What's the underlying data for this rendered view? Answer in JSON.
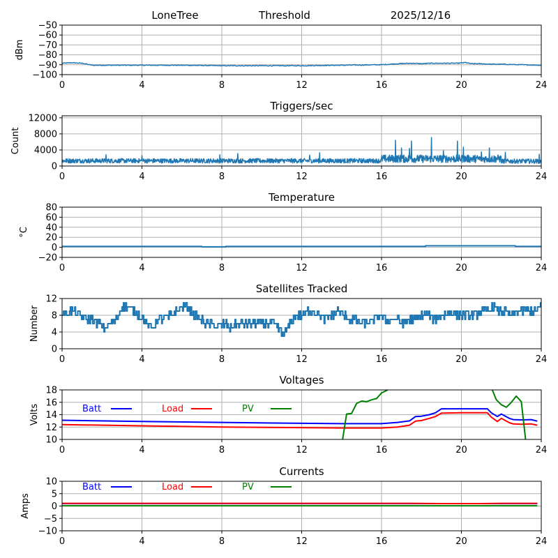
{
  "header": {
    "station": "LoneTree",
    "mode": "Threshold",
    "date": "2025/12/16"
  },
  "chart_data": [
    {
      "id": "signal",
      "type": "line",
      "title": "",
      "xlabel": "",
      "ylabel": "dBm",
      "xlim": [
        0,
        24
      ],
      "ylim": [
        -100,
        -50
      ],
      "xticks": [
        "0",
        "4",
        "8",
        "12",
        "16",
        "20",
        "24"
      ],
      "yticks": [
        "−100",
        "−90",
        "−80",
        "−70",
        "−60",
        "−50"
      ],
      "ytick_values": [
        -100,
        -90,
        -80,
        -70,
        -60,
        -50
      ],
      "grid": true,
      "series": [
        {
          "name": "signal",
          "color": "#1f77b4",
          "x": [
            0,
            0.5,
            1.0,
            1.5,
            2,
            4,
            6,
            8,
            10,
            12,
            14,
            16,
            16.8,
            17.5,
            18,
            18.5,
            19,
            19.8,
            20.2,
            20.5,
            21,
            21.5,
            22,
            23,
            24
          ],
          "y": [
            -88.5,
            -88,
            -88.5,
            -90.5,
            -90.5,
            -90.5,
            -90.5,
            -91,
            -91,
            -91,
            -90.5,
            -90,
            -89,
            -88.5,
            -89,
            -88.5,
            -88.5,
            -88.5,
            -87.8,
            -89,
            -89,
            -89.5,
            -89.5,
            -90,
            -90.5
          ]
        }
      ]
    },
    {
      "id": "triggers",
      "type": "line",
      "title": "Triggers/sec",
      "xlabel": "",
      "ylabel": "Count",
      "xlim": [
        0,
        24
      ],
      "ylim": [
        0,
        12500
      ],
      "xticks": [
        "0",
        "4",
        "8",
        "12",
        "16",
        "20",
        "24"
      ],
      "yticks": [
        "0",
        "4000",
        "8000",
        "12000"
      ],
      "ytick_values": [
        0,
        4000,
        8000,
        12000
      ],
      "grid": true,
      "series": [
        {
          "name": "triggers",
          "color": "#1f77b4",
          "baseline_ranges": [
            {
              "from": 0,
              "to": 16,
              "mean": 1300,
              "jitter": 700
            },
            {
              "from": 16,
              "to": 22,
              "mean": 1800,
              "jitter": 1200
            },
            {
              "from": 22,
              "to": 24,
              "mean": 1200,
              "jitter": 700
            }
          ],
          "spikes": [
            {
              "x": 2.2,
              "y": 2800
            },
            {
              "x": 4.0,
              "y": 2600
            },
            {
              "x": 7.9,
              "y": 2800
            },
            {
              "x": 8.8,
              "y": 3100
            },
            {
              "x": 12.4,
              "y": 2700
            },
            {
              "x": 12.9,
              "y": 3300
            },
            {
              "x": 16.7,
              "y": 6400
            },
            {
              "x": 17.0,
              "y": 4500
            },
            {
              "x": 17.4,
              "y": 4400
            },
            {
              "x": 17.5,
              "y": 6200
            },
            {
              "x": 18.5,
              "y": 7100
            },
            {
              "x": 19.1,
              "y": 3800
            },
            {
              "x": 19.8,
              "y": 6200
            },
            {
              "x": 20.1,
              "y": 4700
            },
            {
              "x": 21.0,
              "y": 3500
            },
            {
              "x": 21.4,
              "y": 4500
            },
            {
              "x": 22.2,
              "y": 3400
            },
            {
              "x": 23.9,
              "y": 2900
            }
          ]
        }
      ]
    },
    {
      "id": "temperature",
      "type": "line",
      "title": "Temperature",
      "xlabel": "",
      "ylabel": "°C",
      "xlim": [
        0,
        24
      ],
      "ylim": [
        -20,
        80
      ],
      "xticks": [
        "0",
        "4",
        "8",
        "12",
        "16",
        "20",
        "24"
      ],
      "yticks": [
        "−20",
        "0",
        "20",
        "40",
        "60",
        "80"
      ],
      "ytick_values": [
        -20,
        0,
        20,
        40,
        60,
        80
      ],
      "grid": true,
      "series": [
        {
          "name": "temperature",
          "color": "#1f77b4",
          "x": [
            0,
            7.0,
            7.0,
            8.2,
            8.2,
            18.2,
            18.2,
            22.7,
            22.7,
            24
          ],
          "y": [
            2,
            2,
            1,
            1,
            2,
            2,
            3,
            3,
            2,
            2
          ]
        }
      ]
    },
    {
      "id": "satellites",
      "type": "line",
      "title": "Satellites Tracked",
      "xlabel": "",
      "ylabel": "Number",
      "xlim": [
        0,
        24
      ],
      "ylim": [
        0,
        12
      ],
      "xticks": [
        "0",
        "4",
        "8",
        "12",
        "16",
        "20",
        "24"
      ],
      "yticks": [
        "0",
        "4",
        "8",
        "12"
      ],
      "ytick_values": [
        0,
        4,
        8,
        12
      ],
      "grid": true,
      "series": [
        {
          "name": "satellites",
          "color": "#1f77b4",
          "x": [
            0,
            0.3,
            0.6,
            0.9,
            1.2,
            1.5,
            1.8,
            2.1,
            2.4,
            2.7,
            3.0,
            3.3,
            3.6,
            3.9,
            4.2,
            4.5,
            4.8,
            5.1,
            5.4,
            5.7,
            6.0,
            6.3,
            6.6,
            6.9,
            7.2,
            7.5,
            7.8,
            8.1,
            8.4,
            8.7,
            9.0,
            9.3,
            9.6,
            9.9,
            10.2,
            10.5,
            10.8,
            11.1,
            11.4,
            11.7,
            12.0,
            12.3,
            12.6,
            12.9,
            13.2,
            13.5,
            13.8,
            14.1,
            14.4,
            14.7,
            15.0,
            15.3,
            15.6,
            15.9,
            16.2,
            16.5,
            16.8,
            17.1,
            17.4,
            17.7,
            18.0,
            18.3,
            18.6,
            18.9,
            19.2,
            19.5,
            19.8,
            20.1,
            20.4,
            20.7,
            21.0,
            21.3,
            21.6,
            21.9,
            22.2,
            22.5,
            22.8,
            23.1,
            23.4,
            23.7,
            24.0
          ],
          "y": [
            8,
            9,
            9,
            8,
            7,
            7,
            6,
            5,
            6,
            7,
            10,
            10,
            9,
            8,
            6,
            5,
            7,
            7,
            8,
            9,
            10,
            10,
            8,
            7,
            6,
            6,
            5,
            6,
            5,
            6,
            6,
            6,
            6,
            6,
            6,
            6,
            5,
            3,
            6,
            8,
            8,
            9,
            9,
            8,
            7,
            8,
            9,
            8,
            7,
            7,
            6,
            6,
            7,
            8,
            7,
            7,
            7,
            6,
            7,
            7,
            8,
            8,
            7,
            8,
            8,
            9,
            8,
            8,
            8,
            8,
            9,
            9,
            10,
            9,
            9,
            8,
            9,
            9,
            9,
            9,
            10
          ]
        }
      ]
    },
    {
      "id": "voltages",
      "type": "line",
      "title": "Voltages",
      "xlabel": "",
      "ylabel": "Volts",
      "xlim": [
        0,
        24
      ],
      "ylim": [
        10,
        18
      ],
      "xticks": [
        "0",
        "4",
        "8",
        "12",
        "16",
        "20",
        "24"
      ],
      "yticks": [
        "10",
        "12",
        "14",
        "16",
        "18"
      ],
      "ytick_values": [
        10,
        12,
        14,
        16,
        18
      ],
      "grid": true,
      "legend": {
        "placement": "top-left",
        "labels": [
          "Batt",
          "Load",
          "PV"
        ]
      },
      "series": [
        {
          "name": "Batt",
          "color": "#0000ff",
          "x": [
            0,
            4,
            8,
            12,
            14,
            16,
            16.8,
            17.4,
            17.7,
            18.0,
            18.4,
            18.7,
            19.0,
            20.0,
            21.0,
            21.3,
            21.5,
            21.8,
            22.0,
            22.4,
            22.6,
            23.0,
            23.5,
            23.8
          ],
          "y": [
            13.1,
            12.9,
            12.75,
            12.6,
            12.55,
            12.55,
            12.75,
            13.0,
            13.7,
            13.75,
            14.0,
            14.3,
            14.95,
            14.95,
            14.95,
            14.95,
            14.3,
            13.7,
            14.1,
            13.4,
            13.2,
            13.15,
            13.2,
            12.95
          ]
        },
        {
          "name": "Load",
          "color": "#ff0000",
          "x": [
            0,
            4,
            8,
            12,
            14,
            16,
            16.8,
            17.4,
            17.7,
            18.0,
            18.4,
            18.7,
            19.0,
            20.0,
            21.0,
            21.3,
            21.5,
            21.8,
            22.0,
            22.4,
            22.6,
            23.0,
            23.5,
            23.8
          ],
          "y": [
            12.4,
            12.2,
            12.0,
            11.9,
            11.85,
            11.85,
            12.0,
            12.3,
            12.95,
            13.05,
            13.4,
            13.7,
            14.25,
            14.3,
            14.3,
            14.3,
            13.6,
            12.9,
            13.4,
            12.7,
            12.5,
            12.45,
            12.5,
            12.3
          ]
        },
        {
          "name": "PV",
          "color": "#008000",
          "x": [
            14.0,
            14.25,
            14.5,
            14.75,
            15.0,
            15.25,
            15.5,
            15.75,
            16.0,
            16.25,
            16.5,
            16.75,
            17.0,
            21.4,
            21.5,
            21.75,
            22.0,
            22.25,
            22.5,
            22.75,
            23.0,
            23.25,
            23.5,
            23.75
          ],
          "y": [
            9.0,
            14.1,
            14.2,
            15.8,
            16.2,
            16.1,
            16.4,
            16.6,
            17.5,
            17.9,
            18.5,
            18.7,
            18.8,
            18.8,
            18.4,
            16.4,
            15.6,
            15.2,
            16.0,
            17.0,
            16.1,
            9.0,
            9.0,
            9.0
          ]
        }
      ]
    },
    {
      "id": "currents",
      "type": "line",
      "title": "Currents",
      "xlabel": "",
      "ylabel": "Amps",
      "xlim": [
        0,
        24
      ],
      "ylim": [
        -10,
        10
      ],
      "xticks": [
        "0",
        "4",
        "8",
        "12",
        "16",
        "20",
        "24"
      ],
      "yticks": [
        "−10",
        "−5",
        "0",
        "5",
        "10"
      ],
      "ytick_values": [
        -10,
        -5,
        0,
        5,
        10
      ],
      "grid": true,
      "legend": {
        "placement": "top-left",
        "labels": [
          "Batt",
          "Load",
          "PV"
        ]
      },
      "series": [
        {
          "name": "Batt",
          "color": "#0000ff",
          "x": [
            0,
            23.8
          ],
          "y": [
            1.0,
            1.0
          ]
        },
        {
          "name": "Load",
          "color": "#ff0000",
          "x": [
            0,
            17.5,
            19,
            21,
            22,
            23.8
          ],
          "y": [
            1.1,
            1.1,
            1.0,
            1.0,
            1.1,
            1.1
          ]
        },
        {
          "name": "PV",
          "color": "#008000",
          "x": [
            0,
            23.8
          ],
          "y": [
            0.1,
            0.1
          ]
        }
      ]
    }
  ]
}
